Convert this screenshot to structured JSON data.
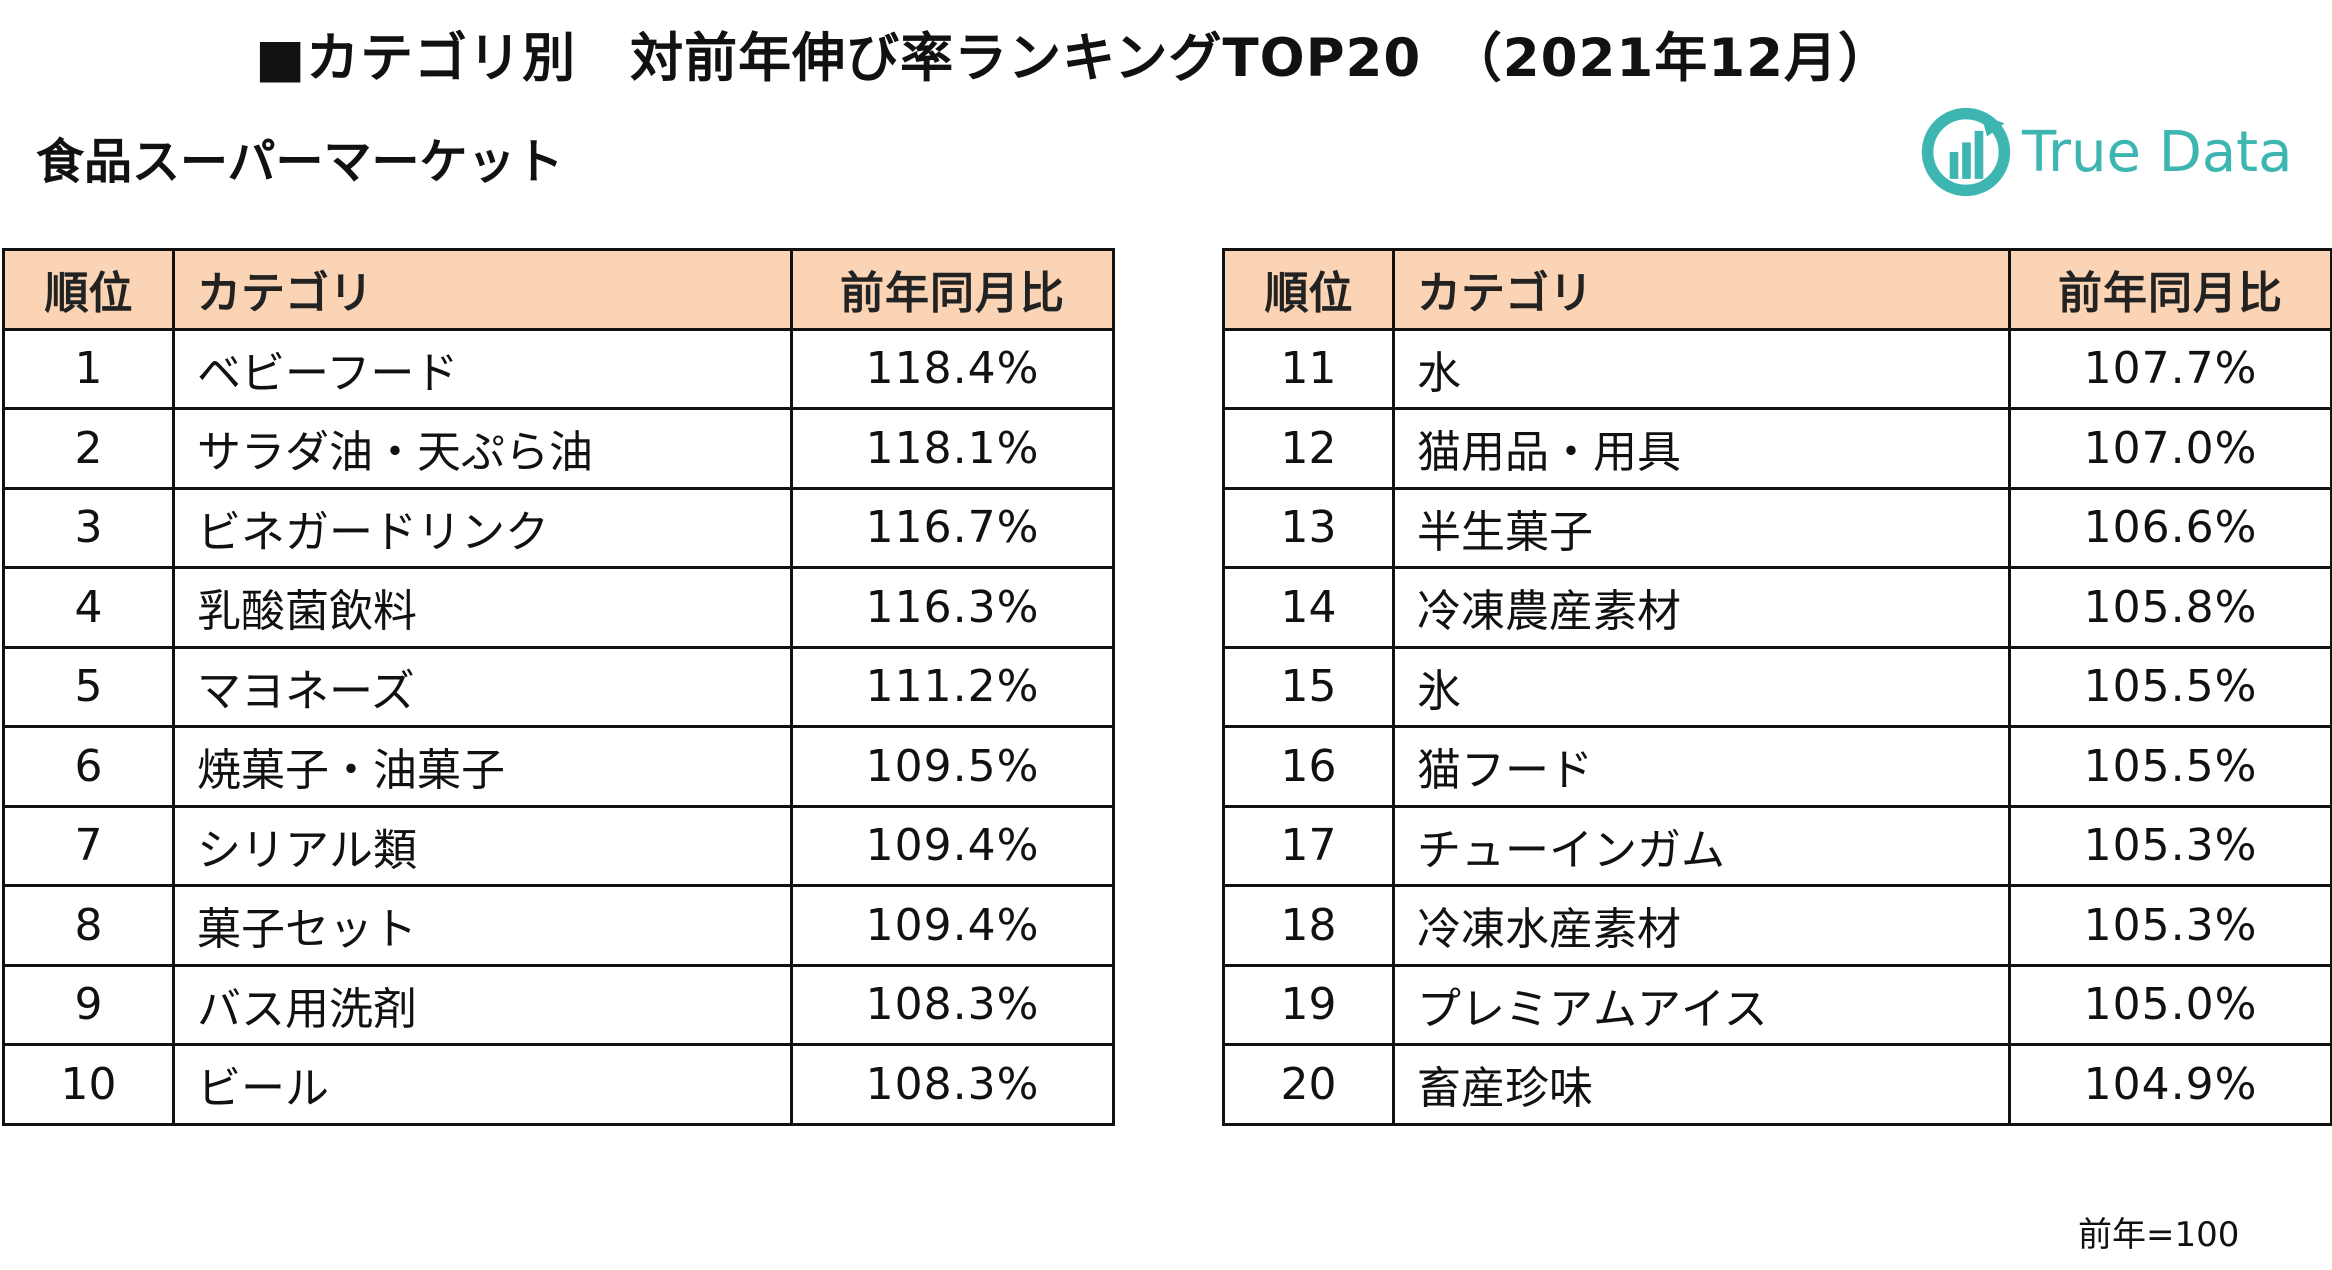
{
  "title": "■カテゴリ別　対前年伸び率ランキングTOP20　（2021年12月）",
  "subtitle": "食品スーパーマーケット",
  "logo": {
    "text": "True Data",
    "icon": "true-data-logo-icon",
    "color": "#3db5b0"
  },
  "colors": {
    "header_bg": "#fad4b4",
    "border": "#111111"
  },
  "table": {
    "headers": {
      "rank": "順位",
      "category": "カテゴリ",
      "ratio": "前年同月比"
    },
    "left_rows": [
      {
        "rank": "1",
        "category": "ベビーフード",
        "ratio": "118.4%"
      },
      {
        "rank": "2",
        "category": "サラダ油・天ぷら油",
        "ratio": "118.1%"
      },
      {
        "rank": "3",
        "category": "ビネガードリンク",
        "ratio": "116.7%"
      },
      {
        "rank": "4",
        "category": "乳酸菌飲料",
        "ratio": "116.3%"
      },
      {
        "rank": "5",
        "category": "マヨネーズ",
        "ratio": "111.2%"
      },
      {
        "rank": "6",
        "category": "焼菓子・油菓子",
        "ratio": "109.5%"
      },
      {
        "rank": "7",
        "category": "シリアル類",
        "ratio": "109.4%"
      },
      {
        "rank": "8",
        "category": "菓子セット",
        "ratio": "109.4%"
      },
      {
        "rank": "9",
        "category": "バス用洗剤",
        "ratio": "108.3%"
      },
      {
        "rank": "10",
        "category": "ビール",
        "ratio": "108.3%"
      }
    ],
    "right_rows": [
      {
        "rank": "11",
        "category": "水",
        "ratio": "107.7%"
      },
      {
        "rank": "12",
        "category": "猫用品・用具",
        "ratio": "107.0%"
      },
      {
        "rank": "13",
        "category": "半生菓子",
        "ratio": "106.6%"
      },
      {
        "rank": "14",
        "category": "冷凍農産素材",
        "ratio": "105.8%"
      },
      {
        "rank": "15",
        "category": "氷",
        "ratio": "105.5%"
      },
      {
        "rank": "16",
        "category": "猫フード",
        "ratio": "105.5%"
      },
      {
        "rank": "17",
        "category": "チューインガム",
        "ratio": "105.3%"
      },
      {
        "rank": "18",
        "category": "冷凍水産素材",
        "ratio": "105.3%"
      },
      {
        "rank": "19",
        "category": "プレミアムアイス",
        "ratio": "105.0%"
      },
      {
        "rank": "20",
        "category": "畜産珍味",
        "ratio": "104.9%"
      }
    ]
  },
  "note": "前年=100"
}
